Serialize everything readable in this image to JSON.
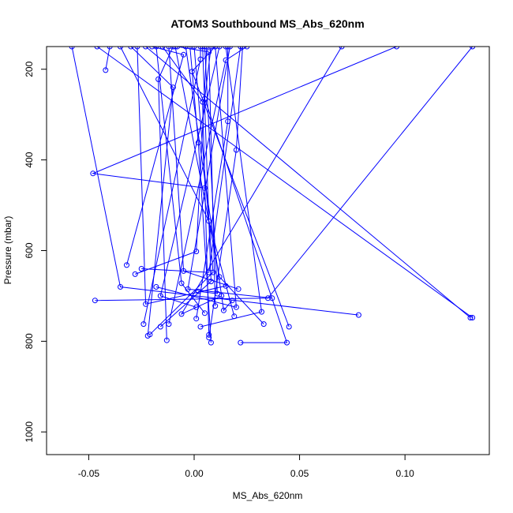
{
  "chart_data": {
    "type": "line",
    "title": "ATOM3 Southbound MS_Abs_620nm",
    "xlabel": "MS_Abs_620nm",
    "ylabel": "Pressure (mbar)",
    "xlim": [
      -0.07,
      0.14
    ],
    "ylim": [
      1050,
      150
    ],
    "y_reversed": true,
    "grid": false,
    "x_ticks": [
      {
        "value": -0.05,
        "label": "-0.05"
      },
      {
        "value": 0.0,
        "label": "0.00"
      },
      {
        "value": 0.05,
        "label": "0.05"
      },
      {
        "value": 0.1,
        "label": "0.10"
      }
    ],
    "y_ticks": [
      {
        "value": 200,
        "label": "200"
      },
      {
        "value": 400,
        "label": "400"
      },
      {
        "value": 600,
        "label": "600"
      },
      {
        "value": 800,
        "label": "800"
      },
      {
        "value": 1000,
        "label": "1000"
      }
    ],
    "color": "#0000ff",
    "series": [
      {
        "x": [
          -0.058,
          -0.035,
          0.078
        ],
        "y": [
          150,
          680,
          742
        ]
      },
      {
        "x": [
          0.132,
          0.035,
          -0.047
        ],
        "y": [
          150,
          705,
          710
        ]
      },
      {
        "x": [
          -0.023,
          0.131
        ],
        "y": [
          150,
          748
        ]
      },
      {
        "x": [
          -0.046,
          0.132
        ],
        "y": [
          150,
          748
        ]
      },
      {
        "x": [
          0.096,
          -0.048,
          0.005
        ],
        "y": [
          150,
          430,
          462
        ]
      },
      {
        "x": [
          -0.04,
          -0.042
        ],
        "y": [
          150,
          202
        ]
      },
      {
        "x": [
          -0.01,
          -0.017,
          -0.013
        ],
        "y": [
          150,
          222,
          798
        ]
      },
      {
        "x": [
          -0.02,
          -0.005,
          -0.032
        ],
        "y": [
          150,
          168,
          632
        ]
      },
      {
        "x": [
          -0.03,
          -0.01,
          -0.022
        ],
        "y": [
          150,
          240,
          788
        ]
      },
      {
        "x": [
          0.01,
          -0.001,
          0.045
        ],
        "y": [
          150,
          205,
          768
        ]
      },
      {
        "x": [
          0.003,
          0.003,
          -0.024
        ],
        "y": [
          150,
          178,
          762
        ]
      },
      {
        "x": [
          0.025,
          0.015,
          -0.012
        ],
        "y": [
          150,
          180,
          762
        ]
      },
      {
        "x": [
          0.008,
          0.005,
          0.044,
          0.022
        ],
        "y": [
          150,
          265,
          803,
          803
        ]
      },
      {
        "x": [
          -0.015,
          0.004,
          0.007
        ],
        "y": [
          150,
          272,
          786
        ]
      },
      {
        "x": [
          -0.008,
          0.007,
          0.01
        ],
        "y": [
          150,
          162,
          722
        ]
      },
      {
        "x": [
          0.016,
          0.016,
          0.001
        ],
        "y": [
          150,
          315,
          750
        ]
      },
      {
        "x": [
          0.023,
          0.02,
          0.007
        ],
        "y": [
          150,
          378,
          792
        ]
      },
      {
        "x": [
          -0.002,
          0.002,
          0.008
        ],
        "y": [
          150,
          362,
          803
        ]
      },
      {
        "x": [
          -0.035,
          0.007,
          0.019
        ],
        "y": [
          150,
          535,
          745
        ]
      },
      {
        "x": [
          0.006,
          0.001,
          -0.028
        ],
        "y": [
          150,
          602,
          652
        ]
      },
      {
        "x": [
          0.015,
          0.032,
          0.003
        ],
        "y": [
          150,
          735,
          768
        ]
      },
      {
        "x": [
          -0.012,
          -0.005,
          0.021
        ],
        "y": [
          150,
          645,
          685
        ]
      },
      {
        "x": [
          0.022,
          0.007,
          -0.025
        ],
        "y": [
          150,
          648,
          640
        ]
      },
      {
        "x": [
          -0.027,
          -0.023,
          0.015
        ],
        "y": [
          150,
          718,
          678
        ]
      },
      {
        "x": [
          0.07,
          -0.006,
          0.013
        ],
        "y": [
          150,
          740,
          700
        ]
      },
      {
        "x": [
          0.004,
          0.008,
          -0.016
        ],
        "y": [
          150,
          668,
          768
        ]
      },
      {
        "x": [
          -0.009,
          0.012,
          0.033
        ],
        "y": [
          150,
          658,
          762
        ]
      },
      {
        "x": [
          0.01,
          0.02,
          -0.018
        ],
        "y": [
          150,
          725,
          680
        ]
      },
      {
        "x": [
          0.017,
          -0.003,
          0.037
        ],
        "y": [
          150,
          685,
          705
        ]
      },
      {
        "x": [
          0.0,
          0.009,
          -0.021
        ],
        "y": [
          150,
          648,
          785
        ]
      },
      {
        "x": [
          -0.004,
          0.014,
          0.018
        ],
        "y": [
          150,
          732,
          710
        ]
      },
      {
        "x": [
          0.012,
          -0.016,
          0.001
        ],
        "y": [
          150,
          700,
          725
        ]
      },
      {
        "x": [
          -0.018,
          -0.006,
          0.005
        ],
        "y": [
          150,
          672,
          738
        ]
      },
      {
        "x": [
          0.005,
          0.011,
          0.002
        ],
        "y": [
          150,
          695,
          690
        ]
      }
    ]
  }
}
